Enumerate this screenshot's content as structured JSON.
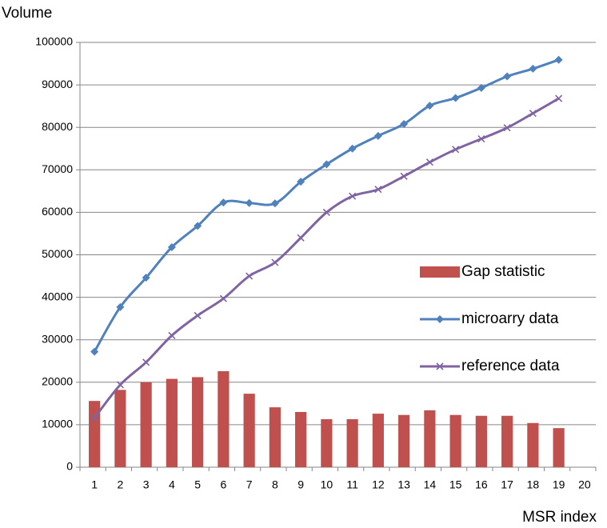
{
  "chart_data": {
    "type": "bar-line",
    "y_label": "Volume",
    "x_label": "MSR index",
    "categories": [
      "1",
      "2",
      "3",
      "4",
      "5",
      "6",
      "7",
      "8",
      "9",
      "10",
      "11",
      "12",
      "13",
      "14",
      "15",
      "16",
      "17",
      "18",
      "19",
      "20"
    ],
    "series": [
      {
        "name": "Gap statistic",
        "type": "bar",
        "color": "#c0504d",
        "values": [
          15600,
          18200,
          20000,
          20800,
          21200,
          22600,
          17300,
          14100,
          13000,
          11300,
          11300,
          12600,
          12300,
          13400,
          12300,
          12100,
          12100,
          10400,
          9200,
          null
        ]
      },
      {
        "name": "microarry data",
        "type": "line",
        "marker": "diamond",
        "color": "#4f81bd",
        "values": [
          27200,
          37700,
          44600,
          51800,
          56800,
          62300,
          62200,
          62100,
          67200,
          71300,
          75000,
          78000,
          80800,
          85100,
          86900,
          89300,
          92000,
          93800,
          95900,
          null
        ]
      },
      {
        "name": "reference data",
        "type": "line",
        "marker": "x",
        "color": "#8064a2",
        "values": [
          11600,
          19400,
          24700,
          31000,
          35700,
          39700,
          45000,
          48200,
          54000,
          60000,
          63800,
          65400,
          68500,
          71800,
          74800,
          77300,
          79900,
          83300,
          86800,
          null
        ]
      }
    ],
    "ylim": [
      0,
      100000
    ],
    "yticks": [
      0,
      10000,
      20000,
      30000,
      40000,
      50000,
      60000,
      70000,
      80000,
      90000,
      100000
    ],
    "grid": true,
    "legend": "right"
  }
}
